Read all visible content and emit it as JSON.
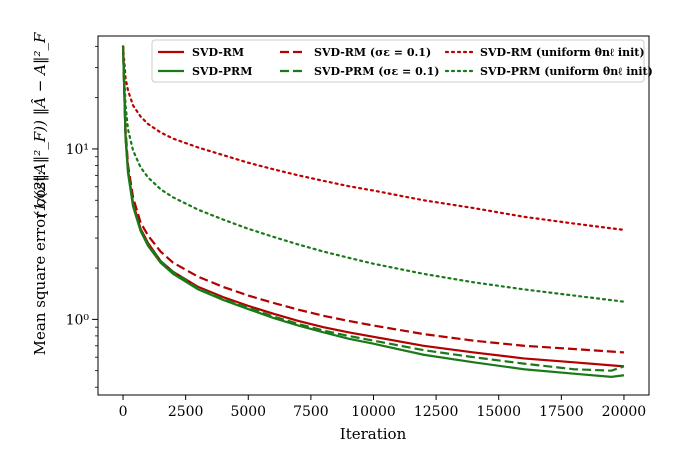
{
  "chart_data": {
    "type": "line",
    "xlabel": "Iteration",
    "ylabel_prefix": "Mean square error cost:",
    "ylabel_formula": "(1/(2‖A‖²_F)) ‖Â − A‖²_F",
    "x_scale": "linear",
    "y_scale": "log",
    "xlim": [
      -1000,
      21000
    ],
    "ylim": [
      0.36,
      46
    ],
    "x_ticks": [
      0,
      2500,
      5000,
      7500,
      10000,
      12500,
      15000,
      17500,
      20000
    ],
    "x_tick_labels": [
      "0",
      "2500",
      "5000",
      "7500",
      "10000",
      "12500",
      "15000",
      "17500",
      "20000"
    ],
    "y_ticks": [
      1,
      10
    ],
    "y_tick_labels": [
      "10⁰",
      "10¹"
    ],
    "grid": false,
    "legend_position": "top-right",
    "series": [
      {
        "name": "SVD-RM",
        "color": "#b30000",
        "style": "solid",
        "x": [
          0,
          100,
          200,
          400,
          700,
          1000,
          1500,
          2000,
          3000,
          4000,
          5000,
          6000,
          7000,
          8000,
          9000,
          10000,
          12000,
          14000,
          16000,
          18000,
          20000
        ],
        "y": [
          40,
          12,
          7.5,
          4.8,
          3.4,
          2.8,
          2.2,
          1.9,
          1.55,
          1.35,
          1.2,
          1.08,
          0.98,
          0.9,
          0.84,
          0.79,
          0.7,
          0.64,
          0.59,
          0.56,
          0.53
        ]
      },
      {
        "name": "SVD-PRM",
        "color": "#1a7a1a",
        "style": "solid",
        "x": [
          0,
          100,
          200,
          400,
          700,
          1000,
          1500,
          2000,
          3000,
          4000,
          5000,
          6000,
          7000,
          8000,
          9000,
          10000,
          12000,
          14000,
          16000,
          18000,
          19500,
          20000
        ],
        "y": [
          40,
          11.5,
          7.2,
          4.6,
          3.3,
          2.7,
          2.15,
          1.85,
          1.5,
          1.3,
          1.15,
          1.02,
          0.92,
          0.84,
          0.77,
          0.72,
          0.62,
          0.56,
          0.51,
          0.48,
          0.46,
          0.47
        ]
      },
      {
        "name": "SVD-RM (σε = 0.1)",
        "color": "#b30000",
        "style": "dashed",
        "x": [
          0,
          100,
          200,
          400,
          700,
          1000,
          1500,
          2000,
          3000,
          4000,
          5000,
          6000,
          7000,
          8000,
          9000,
          10000,
          12000,
          14000,
          16000,
          18000,
          20000
        ],
        "y": [
          40,
          13,
          8,
          5.2,
          3.7,
          3.1,
          2.5,
          2.15,
          1.78,
          1.55,
          1.38,
          1.25,
          1.14,
          1.05,
          0.98,
          0.92,
          0.82,
          0.75,
          0.7,
          0.67,
          0.64
        ]
      },
      {
        "name": "SVD-PRM (σε = 0.1)",
        "color": "#1a7a1a",
        "style": "dashed",
        "x": [
          0,
          100,
          200,
          400,
          700,
          1000,
          1500,
          2000,
          3000,
          4000,
          5000,
          6000,
          7000,
          8000,
          9000,
          10000,
          12000,
          14000,
          16000,
          18000,
          19500,
          20000
        ],
        "y": [
          40,
          11.8,
          7.4,
          4.7,
          3.35,
          2.75,
          2.2,
          1.9,
          1.52,
          1.32,
          1.17,
          1.04,
          0.94,
          0.86,
          0.8,
          0.75,
          0.66,
          0.6,
          0.55,
          0.51,
          0.5,
          0.53
        ]
      },
      {
        "name": "SVD-RM (uniform θnℓ init)",
        "color": "#c00000",
        "style": "dotted",
        "x": [
          0,
          100,
          200,
          400,
          700,
          1000,
          1500,
          2000,
          3000,
          4000,
          5000,
          6000,
          7000,
          8000,
          9000,
          10000,
          12000,
          14000,
          16000,
          18000,
          20000
        ],
        "y": [
          40,
          26,
          22,
          18,
          15.5,
          14,
          12.5,
          11.5,
          10.2,
          9.2,
          8.3,
          7.6,
          7,
          6.5,
          6.05,
          5.7,
          5,
          4.5,
          4,
          3.65,
          3.35
        ]
      },
      {
        "name": "SVD-PRM (uniform θnℓ init)",
        "color": "#1a7a1a",
        "style": "dotted",
        "x": [
          0,
          100,
          200,
          400,
          700,
          1000,
          1500,
          2000,
          3000,
          4000,
          5000,
          6000,
          7000,
          8000,
          9000,
          10000,
          12000,
          14000,
          16000,
          18000,
          20000
        ],
        "y": [
          40,
          18,
          13,
          9.8,
          7.8,
          6.8,
          5.8,
          5.2,
          4.4,
          3.85,
          3.4,
          3.05,
          2.75,
          2.5,
          2.3,
          2.12,
          1.85,
          1.65,
          1.5,
          1.38,
          1.27
        ]
      }
    ]
  }
}
